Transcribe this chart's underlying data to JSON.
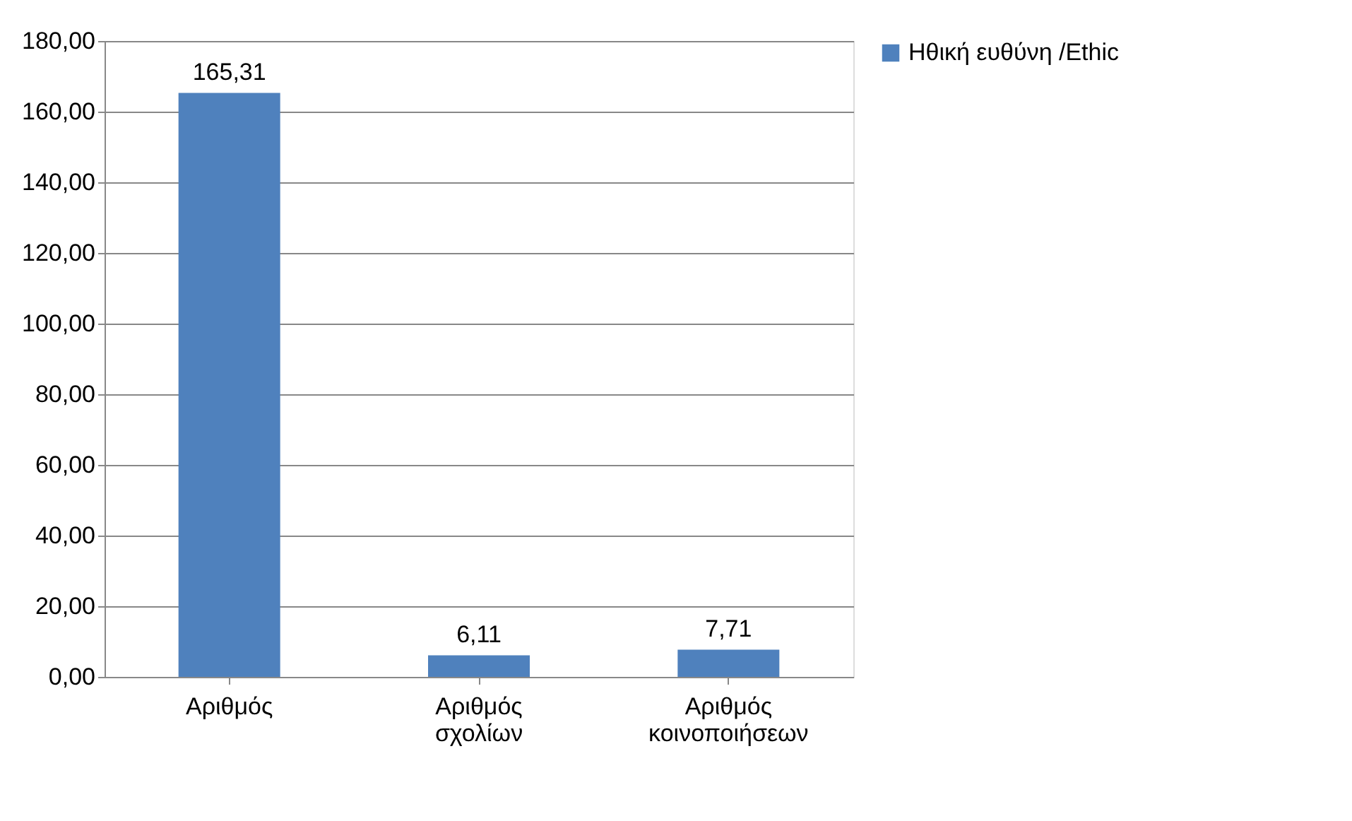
{
  "chart_data": {
    "type": "bar",
    "categories": [
      "Αριθμός",
      "Αριθμός σχολίων",
      "Αριθμός κοινοποιήσεων"
    ],
    "series": [
      {
        "name": "Ηθική ευθύνη /Ethic",
        "color": "#4f81bd",
        "values": [
          165.31,
          6.11,
          7.71
        ],
        "value_labels": [
          "165,31",
          "6,11",
          "7,71"
        ]
      }
    ],
    "ylim": [
      0,
      180
    ],
    "yticks": [
      {
        "value": 0,
        "label": "0,00"
      },
      {
        "value": 20,
        "label": "20,00"
      },
      {
        "value": 40,
        "label": "40,00"
      },
      {
        "value": 60,
        "label": "60,00"
      },
      {
        "value": 80,
        "label": "80,00"
      },
      {
        "value": 100,
        "label": "100,00"
      },
      {
        "value": 120,
        "label": "120,00"
      },
      {
        "value": 140,
        "label": "140,00"
      },
      {
        "value": 160,
        "label": "160,00"
      },
      {
        "value": 180,
        "label": "180,00"
      }
    ],
    "grid": "y",
    "legend": "right"
  }
}
